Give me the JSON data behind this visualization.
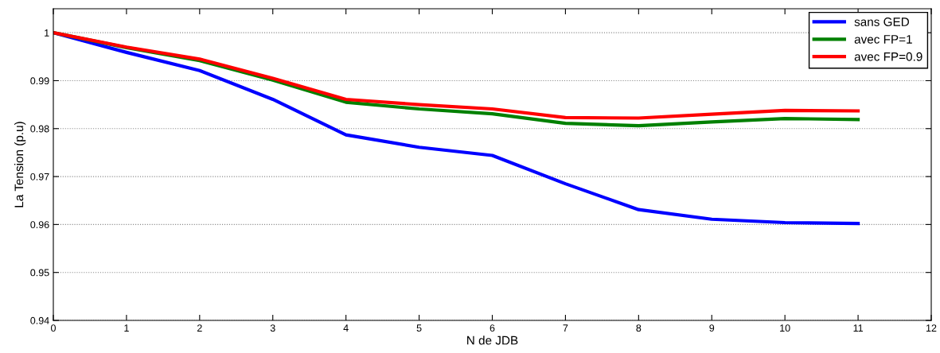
{
  "chart_data": {
    "type": "line",
    "xlabel": "N de JDB",
    "ylabel": "La Tension (p.u)",
    "x": [
      0,
      1,
      2,
      3,
      4,
      5,
      6,
      7,
      8,
      9,
      10,
      11
    ],
    "series": [
      {
        "name": "sans GED",
        "color": "#0000ff",
        "values": [
          1,
          0.9959,
          0.9921,
          0.9861,
          0.9787,
          0.9761,
          0.9744,
          0.9685,
          0.9631,
          0.9611,
          0.9604,
          0.9602
        ]
      },
      {
        "name": "avec FP=1",
        "color": "#008000",
        "values": [
          1,
          0.9969,
          0.9942,
          0.9901,
          0.9855,
          0.9841,
          0.9831,
          0.9811,
          0.9806,
          0.9814,
          0.9821,
          0.9819
        ]
      },
      {
        "name": "avec FP=0.9",
        "color": "#ff0000",
        "values": [
          1,
          0.997,
          0.9945,
          0.9905,
          0.9861,
          0.985,
          0.9841,
          0.9823,
          0.9822,
          0.983,
          0.9838,
          0.9837
        ]
      }
    ],
    "xlim": [
      0,
      12
    ],
    "xticks": [
      0,
      1,
      2,
      3,
      4,
      5,
      6,
      7,
      8,
      9,
      10,
      11,
      12
    ],
    "ylim": [
      0.94,
      1.005
    ],
    "yticks": [
      0.94,
      0.95,
      0.96,
      0.97,
      0.98,
      0.99,
      1
    ],
    "grid": "y",
    "legend": "top right",
    "marker": "none",
    "line_style": "solid"
  }
}
